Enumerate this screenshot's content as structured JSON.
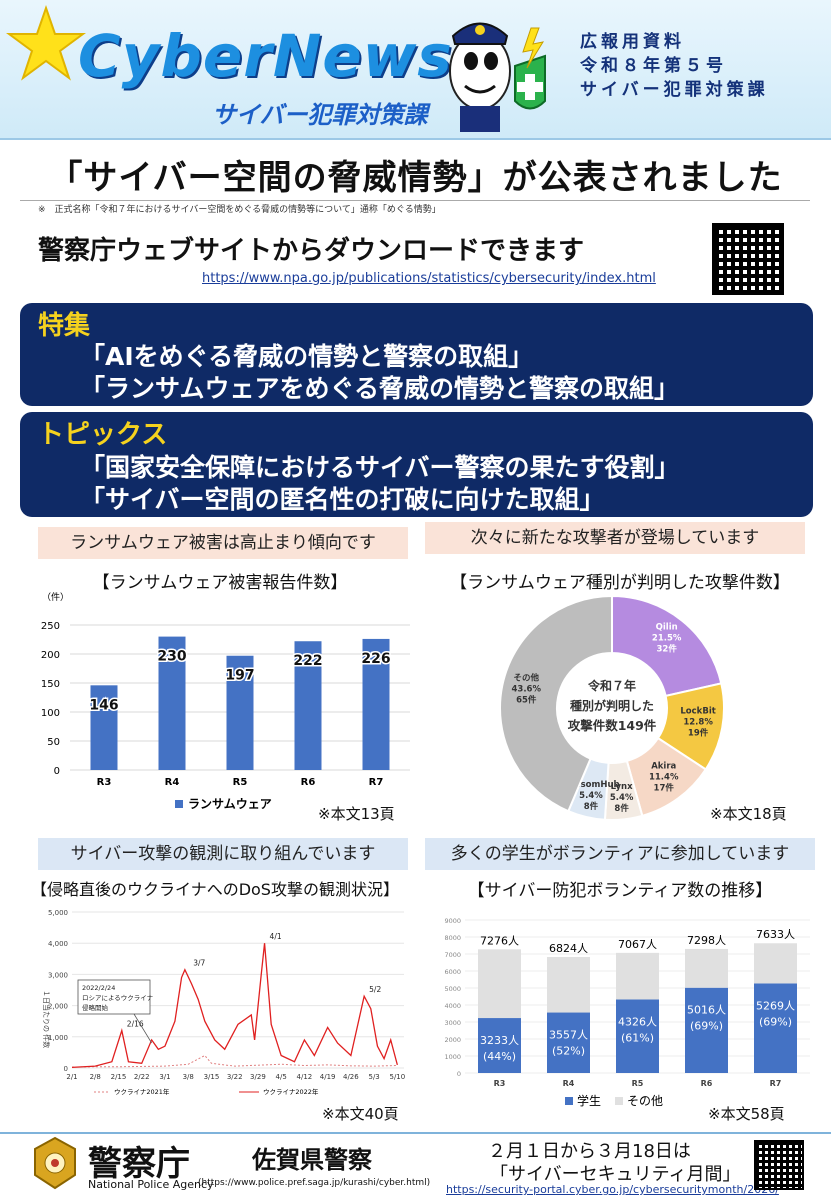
{
  "header": {
    "logo": "CyberNews",
    "logo_sub": "サイバー犯罪対策課",
    "pr_lines": [
      "広報用資料",
      "令和８年第５号",
      "サイバー犯罪対策課"
    ]
  },
  "title": "「サイバー空間の脅威情勢」が公表されました",
  "title_note": "※　正式名称「令和７年におけるサイバー空間をめぐる脅威の情勢等について」通称「めぐる情勢」",
  "download": {
    "text": "警察庁ウェブサイトからダウンロードできます",
    "url": "https://www.npa.go.jp/publications/statistics/cybersecurity/index.html"
  },
  "feature": {
    "heading": "特集",
    "lines": [
      "「AIをめぐる脅威の情勢と警察の取組」",
      "「ランサムウェアをめぐる脅威の情勢と警察の取組」"
    ]
  },
  "topics": {
    "heading": "トピックス",
    "lines": [
      "「国家安全保障におけるサイバー警察の果たす役割」",
      "「サイバー空間の匿名性の打破に向けた取組」"
    ]
  },
  "panels": {
    "p1": {
      "pill": "ランサムウェア被害は高止まり傾向です",
      "title": "【ランサムウェア被害報告件数】",
      "note": "※本文13頁"
    },
    "p2": {
      "pill": "次々に新たな攻撃者が登場しています",
      "title": "【ランサムウェア種別が判明した攻撃件数】",
      "note": "※本文18頁"
    },
    "p3": {
      "pill": "サイバー攻撃の観測に取り組んでいます",
      "title": "【侵略直後のウクライナへのDoS攻撃の観測状況】",
      "note": "※本文40頁"
    },
    "p4": {
      "pill": "多くの学生がボランティアに参加しています",
      "title": "【サイバー防犯ボランティア数の推移】",
      "note": "※本文58頁"
    }
  },
  "colors": {
    "navy": "#0f2a66",
    "gold": "#f5d21e",
    "bar_blue": "#4472c4",
    "bar_gray": "#e0e0e0",
    "line_red": "#e02020"
  },
  "chart_data": [
    {
      "type": "bar",
      "title": "【ランサムウェア被害報告件数】",
      "ylabel": "（件）",
      "categories": [
        "R3",
        "R4",
        "R5",
        "R6",
        "R7"
      ],
      "series": [
        {
          "name": "ランサムウェア",
          "values": [
            146,
            230,
            197,
            222,
            226
          ]
        }
      ],
      "yticks": [
        "0",
        "50",
        "100",
        "150",
        "200",
        "250"
      ],
      "ylim": [
        0,
        250
      ]
    },
    {
      "type": "pie",
      "title": "【ランサムウェア種別が判明した攻撃件数】",
      "center_text": [
        "令和７年",
        "種別が判明した",
        "攻撃件数149件"
      ],
      "slices": [
        {
          "label": "Qilin",
          "pct": "21.5%",
          "count": "32件",
          "value": 32,
          "color": "#b58be0"
        },
        {
          "label": "LockBit",
          "pct": "12.8%",
          "count": "19件",
          "value": 19,
          "color": "#f4c842"
        },
        {
          "label": "Akira",
          "pct": "11.4%",
          "count": "17件",
          "value": 17,
          "color": "#f6d8c6"
        },
        {
          "label": "Lynx",
          "pct": "5.4%",
          "count": "8件",
          "value": 8,
          "color": "#f3ebe3"
        },
        {
          "label": "RansomHub",
          "pct": "5.4%",
          "count": "8件",
          "value": 8,
          "color": "#dde8f4"
        },
        {
          "label": "その他",
          "pct": "43.6%",
          "count": "65件",
          "value": 65,
          "color": "#bdbdbd"
        }
      ]
    },
    {
      "type": "line",
      "title": "【侵略直後のウクライナへのDoS攻撃の観測状況】",
      "ylabel": "１日当たりの 件数",
      "yticks": [
        "0",
        "1,000",
        "2,000",
        "3,000",
        "4,000",
        "5,000"
      ],
      "ylim": [
        0,
        5000
      ],
      "xticks": [
        "2/1",
        "2/8",
        "2/15",
        "2/22",
        "3/1",
        "3/8",
        "3/15",
        "3/22",
        "3/29",
        "4/5",
        "4/12",
        "4/19",
        "4/26",
        "5/3",
        "5/10"
      ],
      "annotations": [
        "2/16",
        "3/7",
        "4/1",
        "5/2"
      ],
      "callout": [
        "2022/2/24",
        "ロシアによるウクライナ",
        "侵略開始"
      ],
      "series": [
        {
          "name": "ウクライナ2021年",
          "points": [
            [
              0,
              30
            ],
            [
              7,
              40
            ],
            [
              14,
              40
            ],
            [
              21,
              50
            ],
            [
              28,
              60
            ],
            [
              35,
              120
            ],
            [
              40,
              400
            ],
            [
              42,
              150
            ],
            [
              49,
              60
            ],
            [
              56,
              90
            ],
            [
              63,
              120
            ],
            [
              70,
              80
            ],
            [
              77,
              100
            ],
            [
              84,
              70
            ],
            [
              91,
              60
            ],
            [
              98,
              80
            ]
          ]
        },
        {
          "name": "ウクライナ2022年",
          "points": [
            [
              0,
              20
            ],
            [
              7,
              60
            ],
            [
              12,
              200
            ],
            [
              15,
              1200
            ],
            [
              17,
              200
            ],
            [
              21,
              150
            ],
            [
              24,
              900
            ],
            [
              26,
              600
            ],
            [
              28,
              700
            ],
            [
              31,
              1500
            ],
            [
              33,
              2900
            ],
            [
              34,
              3150
            ],
            [
              36,
              2700
            ],
            [
              38,
              2200
            ],
            [
              40,
              1500
            ],
            [
              43,
              900
            ],
            [
              46,
              600
            ],
            [
              50,
              1400
            ],
            [
              54,
              1700
            ],
            [
              55,
              900
            ],
            [
              57,
              3000
            ],
            [
              58,
              4000
            ],
            [
              60,
              1400
            ],
            [
              63,
              400
            ],
            [
              67,
              200
            ],
            [
              70,
              900
            ],
            [
              73,
              400
            ],
            [
              77,
              1300
            ],
            [
              80,
              800
            ],
            [
              84,
              400
            ],
            [
              88,
              2300
            ],
            [
              90,
              1900
            ],
            [
              92,
              700
            ],
            [
              94,
              300
            ],
            [
              96,
              900
            ],
            [
              98,
              100
            ]
          ]
        }
      ]
    },
    {
      "type": "bar",
      "title": "【サイバー防犯ボランティア数の推移】",
      "categories": [
        "R3",
        "R4",
        "R5",
        "R6",
        "R7"
      ],
      "yticks": [
        "0",
        "1000",
        "2000",
        "3000",
        "4000",
        "5000",
        "6000",
        "7000",
        "8000",
        "9000"
      ],
      "ylim": [
        0,
        9000
      ],
      "totals": [
        "7276人",
        "6824人",
        "7067人",
        "7298人",
        "7633人"
      ],
      "total_values": [
        7276,
        6824,
        7067,
        7298,
        7633
      ],
      "series": [
        {
          "name": "学生",
          "values": [
            3233,
            3557,
            4326,
            5016,
            5269
          ],
          "labels": [
            "3233人",
            "3557人",
            "4326人",
            "5016人",
            "5269人"
          ],
          "pct": [
            "(44%)",
            "(52%)",
            "(61%)",
            "(69%)",
            "(69%)"
          ]
        },
        {
          "name": "その他",
          "values": [
            4043,
            3267,
            2741,
            2282,
            2364
          ]
        }
      ]
    }
  ],
  "footer": {
    "npa": "警察庁",
    "npa_en": "National Police Agency",
    "saga": "佐賀県警察",
    "saga_url": "(https://www.police.pref.saga.jp/kurashi/cyber.html)",
    "month_1": "２月１日から３月18日は",
    "month_2": "「サイバーセキュリティ月間」",
    "month_url": "https://security-portal.cyber.go.jp/cybersecuritymonth/2026/"
  }
}
